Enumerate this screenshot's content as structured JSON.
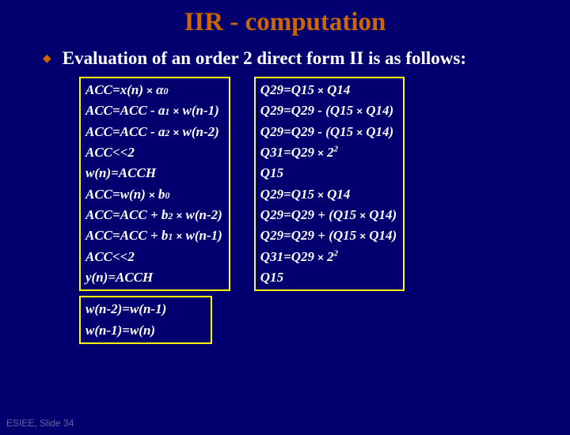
{
  "title": "IIR - computation",
  "subtitle": "Evaluation of an order 2 direct form II is as follows:",
  "colors": {
    "background": "#02006e",
    "title_color": "#cc6600",
    "text_color": "#ffffff",
    "border_color": "#ffff00",
    "bullet_color": "#cc6600",
    "footer_color": "#666699"
  },
  "left_box": [
    "ACC=x(n) × α₀",
    "ACC=ACC - a₁ × w(n-1)",
    "ACC=ACC - a₂ × w(n-2)",
    "ACC<<2",
    "w(n)=ACCH",
    "ACC=w(n) × b₀",
    "ACC=ACC + b₂ × w(n-2)",
    "ACC=ACC + b₁ × w(n-1)",
    "ACC<<2",
    "y(n)=ACCH"
  ],
  "right_box": [
    "Q29=Q15 × Q14",
    "Q29=Q29 - (Q15 × Q14)",
    "Q29=Q29 - (Q15 × Q14)",
    "Q31=Q29 × 2²",
    "Q15",
    "Q29=Q15 × Q14",
    "Q29=Q29 + (Q15 × Q14)",
    "Q29=Q29 + (Q15 × Q14)",
    "Q31=Q29 × 2²",
    "Q15"
  ],
  "bottom_box": [
    "w(n-2)=w(n-1)",
    "w(n-1)=w(n)"
  ],
  "footer": "ESIEE, Slide 34"
}
